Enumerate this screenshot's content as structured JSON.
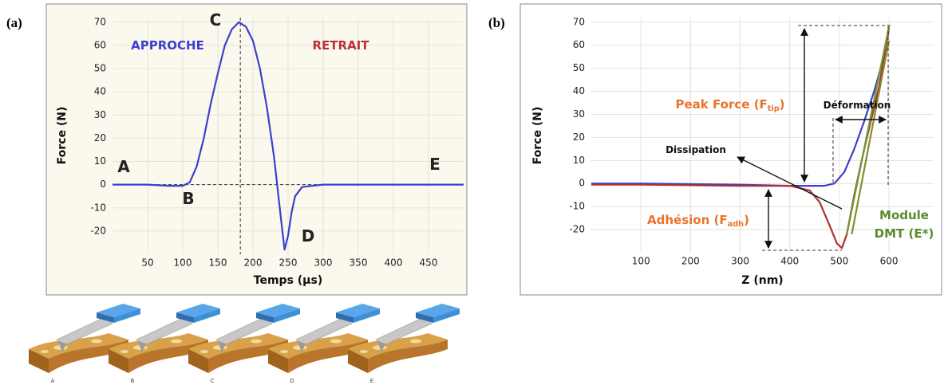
{
  "chart_data": [
    {
      "type": "line",
      "panel_label": "(a)",
      "xlabel": "Temps (µs)",
      "ylabel": "Force (N)",
      "x": [
        0,
        50,
        80,
        100,
        110,
        120,
        130,
        140,
        150,
        160,
        170,
        180,
        190,
        200,
        210,
        220,
        230,
        240,
        245,
        250,
        255,
        260,
        270,
        300,
        400,
        500
      ],
      "series": [
        {
          "color": "#3c3fd0",
          "values": [
            0,
            0,
            -0.5,
            -0.5,
            1,
            8,
            20,
            35,
            48,
            60,
            67,
            70,
            68,
            62,
            50,
            33,
            12,
            -15,
            -28,
            -22,
            -12,
            -5,
            -1,
            0,
            0,
            0
          ]
        }
      ],
      "xlim": [
        0,
        500
      ],
      "ylim": [
        -30,
        72
      ],
      "xticks": [
        50,
        100,
        150,
        200,
        250,
        300,
        350,
        400,
        450
      ],
      "yticks": [
        -20,
        -10,
        0,
        10,
        20,
        30,
        40,
        50,
        60,
        70
      ],
      "vline": 182,
      "hline": 0,
      "grid": true,
      "background": "#fbf8ee",
      "annotations": [
        {
          "text": "A",
          "color": "#222"
        },
        {
          "text": "B",
          "color": "#222"
        },
        {
          "text": "C",
          "color": "#222"
        },
        {
          "text": "D",
          "color": "#222"
        },
        {
          "text": "E",
          "color": "#222"
        },
        {
          "text": "APPROCHE",
          "color": "#3c3fd0"
        },
        {
          "text": "RETRAIT",
          "color": "#b8323a"
        }
      ]
    },
    {
      "type": "line",
      "panel_label": "(b)",
      "xlabel": "Z (nm)",
      "ylabel": "Force (N)",
      "series": [
        {
          "color": "#3c3fd0",
          "x": [
            0,
            100,
            300,
            400,
            470,
            490,
            510,
            530,
            550,
            570,
            590,
            600
          ],
          "values": [
            0,
            0,
            -0.5,
            -1,
            -1,
            0,
            5,
            15,
            27,
            40,
            55,
            68
          ]
        },
        {
          "color": "#b03030",
          "x": [
            0,
            100,
            300,
            400,
            440,
            460,
            480,
            495,
            505,
            515,
            530,
            545,
            560,
            580,
            600
          ],
          "values": [
            -0.5,
            -0.5,
            -1,
            -1,
            -3,
            -8,
            -18,
            -26,
            -28,
            -22,
            -5,
            10,
            24,
            42,
            67
          ]
        },
        {
          "color": "#6a9a3a",
          "x": [
            515,
            600
          ],
          "values": [
            -22,
            68
          ]
        },
        {
          "color": "#8a8a2a",
          "x": [
            525,
            600
          ],
          "values": [
            -22,
            62
          ]
        }
      ],
      "xlim": [
        0,
        690
      ],
      "ylim": [
        -30,
        72
      ],
      "xticks": [
        100,
        200,
        300,
        400,
        500,
        600
      ],
      "yticks": [
        -20,
        -10,
        0,
        10,
        20,
        30,
        40,
        50,
        60,
        70
      ],
      "grid": true,
      "background": "#ffffff",
      "annotations": [
        {
          "text": "Peak Force (F",
          "sub": "tip",
          "tail": ")",
          "color": "#e8742a"
        },
        {
          "text": "Adhésion (F",
          "sub": "adh",
          "tail": ")",
          "color": "#e8742a"
        },
        {
          "text": "Déformation",
          "color": "#111"
        },
        {
          "text": "Dissipation",
          "color": "#111"
        },
        {
          "lines": [
            "Module",
            "DMT (E*)"
          ],
          "color": "#5a8a2a"
        }
      ]
    }
  ],
  "illustration": {
    "labels": [
      "A",
      "B",
      "C",
      "D",
      "E"
    ]
  }
}
